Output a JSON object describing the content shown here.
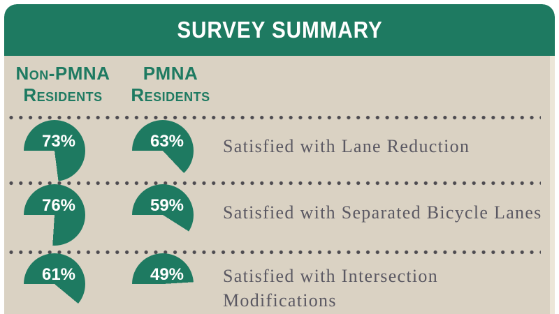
{
  "header": {
    "title": "SURVEY SUMMARY"
  },
  "columns": [
    {
      "line1": "Non-PMNA",
      "line2": "Residents"
    },
    {
      "line1": "PMNA",
      "line2": "Residents"
    }
  ],
  "rows": [
    {
      "values": [
        73,
        63
      ],
      "value_labels": [
        "73%",
        "63%"
      ],
      "label": "Satisfied with Lane Reduction"
    },
    {
      "values": [
        76,
        59
      ],
      "value_labels": [
        "76%",
        "59%"
      ],
      "label": "Satisfied with Separated Bicycle Lanes"
    },
    {
      "values": [
        61,
        49
      ],
      "value_labels": [
        "61%",
        "49%"
      ],
      "label": "Satisfied with Intersection Modifications"
    }
  ],
  "colors": {
    "pie_fill": "#1e7a61",
    "header_bg": "#1e7a61",
    "header_text": "#ffffff",
    "body_bg": "#dad2c3",
    "dots": "#4d4b50",
    "label_text": "#5a5862"
  },
  "chart_data": {
    "type": "pie",
    "title": "SURVEY SUMMARY",
    "unit": "%",
    "categories": [
      "Satisfied with Lane Reduction",
      "Satisfied with Separated Bicycle Lanes",
      "Satisfied with Intersection Modifications"
    ],
    "series": [
      {
        "name": "Non-PMNA Residents",
        "values": [
          73,
          76,
          61
        ]
      },
      {
        "name": "PMNA Residents",
        "values": [
          63,
          59,
          49
        ]
      }
    ],
    "layout_hints": {
      "pie_start": "9 o'clock, clockwise fill",
      "legend_position": "column headers above first row",
      "grid": "dotted row separators"
    }
  }
}
